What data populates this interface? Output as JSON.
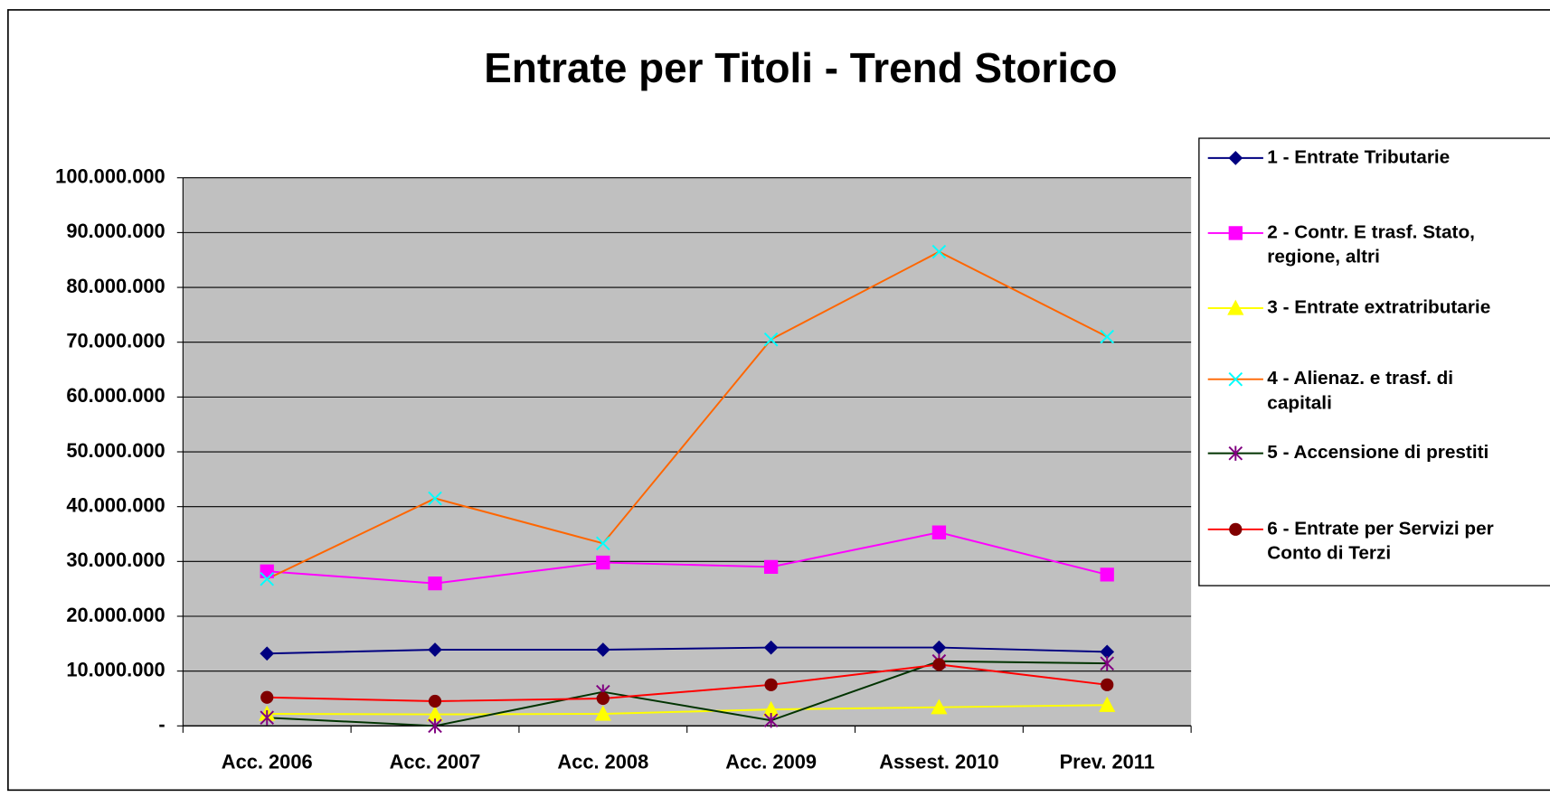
{
  "chart_data": {
    "type": "line",
    "title": "Entrate per Titoli - Trend Storico",
    "categories": [
      "Acc. 2006",
      "Acc. 2007",
      "Acc. 2008",
      "Acc. 2009",
      "Assest. 2010",
      "Prev. 2011"
    ],
    "ylim": [
      0,
      100000000
    ],
    "yticks": [
      {
        "value": 0,
        "label": "-"
      },
      {
        "value": 10000000,
        "label": "10.000.000"
      },
      {
        "value": 20000000,
        "label": "20.000.000"
      },
      {
        "value": 30000000,
        "label": "30.000.000"
      },
      {
        "value": 40000000,
        "label": "40.000.000"
      },
      {
        "value": 50000000,
        "label": "50.000.000"
      },
      {
        "value": 60000000,
        "label": "60.000.000"
      },
      {
        "value": 70000000,
        "label": "70.000.000"
      },
      {
        "value": 80000000,
        "label": "80.000.000"
      },
      {
        "value": 90000000,
        "label": "90.000.000"
      },
      {
        "value": 100000000,
        "label": "100.000.000"
      }
    ],
    "grid": true,
    "legend": "right",
    "series": [
      {
        "name": "1 - Entrate Tributarie",
        "color": "#000080",
        "marker": "diamond",
        "marker_color": "#000080",
        "values": [
          13200000,
          13900000,
          13900000,
          14300000,
          14300000,
          13500000
        ]
      },
      {
        "name": "2 - Contr. E trasf. Stato, regione, altri",
        "color": "#ff00ff",
        "marker": "square",
        "marker_color": "#ff00ff",
        "values": [
          28200000,
          26000000,
          29800000,
          29000000,
          35300000,
          27600000
        ]
      },
      {
        "name": "3 - Entrate extratributarie",
        "color": "#ffff00",
        "marker": "triangle",
        "marker_color": "#ffff00",
        "values": [
          2200000,
          2100000,
          2200000,
          3000000,
          3400000,
          3800000
        ]
      },
      {
        "name": "4 - Alienaz. e trasf. di capitali",
        "color": "#ff6600",
        "marker": "x",
        "marker_color": "#00ffff",
        "values": [
          26800000,
          41500000,
          33300000,
          70500000,
          86500000,
          71000000
        ]
      },
      {
        "name": "5 - Accensione di prestiti",
        "color": "#003300",
        "marker": "star",
        "marker_color": "#800080",
        "values": [
          1500000,
          0,
          6200000,
          1000000,
          11800000,
          11400000
        ]
      },
      {
        "name": "6 - Entrate per Servizi per Conto di Terzi",
        "color": "#ff0000",
        "marker": "circle",
        "marker_color": "#800000",
        "values": [
          5200000,
          4500000,
          5000000,
          7500000,
          11200000,
          7500000
        ]
      }
    ]
  }
}
